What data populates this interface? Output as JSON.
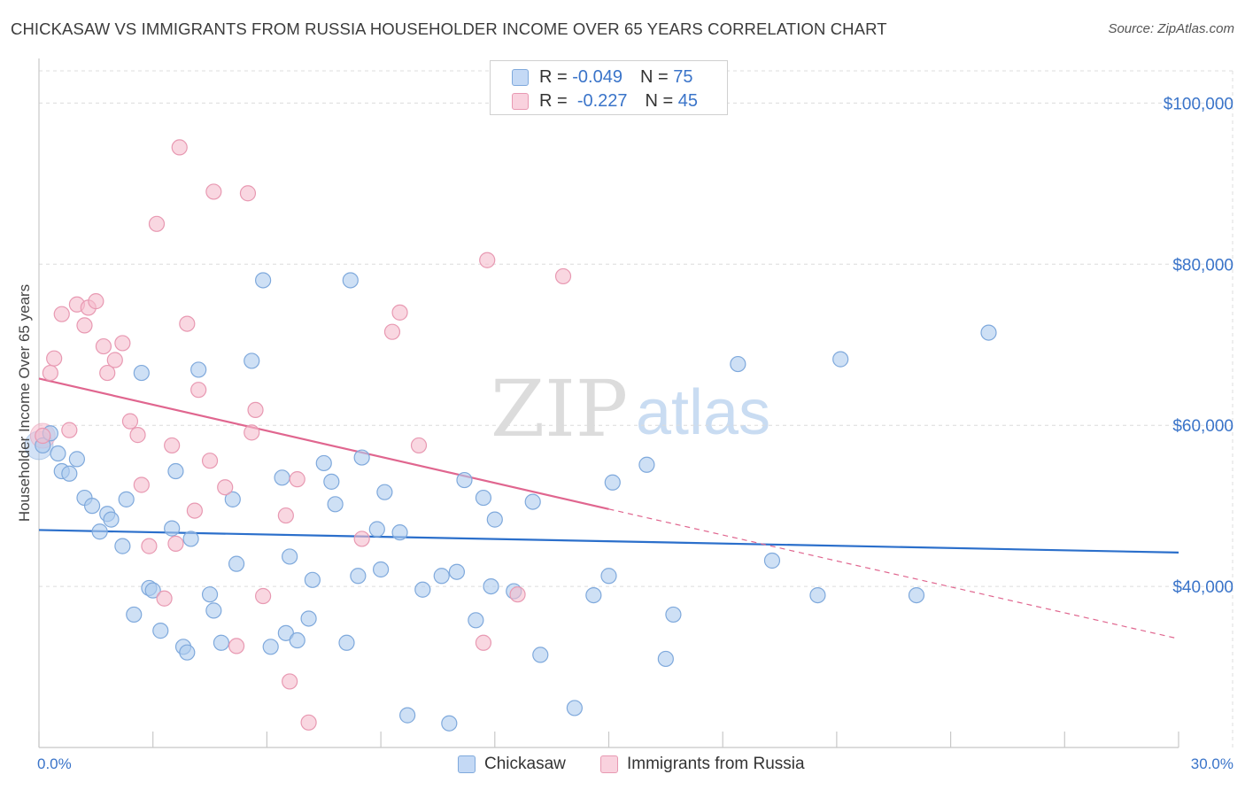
{
  "header": {
    "title": "CHICKASAW VS IMMIGRANTS FROM RUSSIA HOUSEHOLDER INCOME OVER 65 YEARS CORRELATION CHART",
    "source": "Source: ZipAtlas.com"
  },
  "legend": {
    "rows": [
      {
        "r_label": "R =",
        "r_value": "-0.049",
        "n_label": "N =",
        "n_value": "75"
      },
      {
        "r_label": "R =",
        "r_value": "-0.227",
        "n_label": "N =",
        "n_value": "45"
      }
    ]
  },
  "bottom_legend": {
    "series1": "Chickasaw",
    "series2": "Immigrants from Russia"
  },
  "watermark": {
    "zip": "ZIP",
    "atlas": "atlas"
  },
  "colors": {
    "blue_fill": "#aecbef",
    "blue_stroke": "#7fa9dc",
    "blue_line": "#2b6fcb",
    "pink_fill": "#f5bccd",
    "pink_stroke": "#e899b2",
    "pink_line": "#e0668f",
    "grid": "#dcdcdc",
    "label_blue": "#3a74c9"
  },
  "chart_data": {
    "type": "scatter",
    "title": "CHICKASAW VS IMMIGRANTS FROM RUSSIA HOUSEHOLDER INCOME OVER 65 YEARS CORRELATION CHART",
    "xlabel": "",
    "ylabel": "Householder Income Over 65 years",
    "xlim": [
      0,
      30
    ],
    "ylim": [
      20000,
      104000
    ],
    "x_tick_labels": [
      "0.0%",
      "30.0%"
    ],
    "y_ticks": [
      40000,
      60000,
      80000,
      100000
    ],
    "y_tick_labels": [
      "$40,000",
      "$60,000",
      "$80,000",
      "$100,000"
    ],
    "series": [
      {
        "name": "Chickasaw",
        "R": -0.049,
        "N": 75,
        "trend": {
          "x": [
            0,
            30
          ],
          "y": [
            47000,
            44200
          ],
          "dashed_from": null
        },
        "points": [
          [
            0.1,
            57.5
          ],
          [
            0.3,
            59
          ],
          [
            0.5,
            56.5
          ],
          [
            0.6,
            54.3
          ],
          [
            0.8,
            54
          ],
          [
            1.0,
            55.8
          ],
          [
            1.2,
            51
          ],
          [
            1.4,
            50
          ],
          [
            1.6,
            46.8
          ],
          [
            1.8,
            49
          ],
          [
            1.9,
            48.3
          ],
          [
            2.2,
            45
          ],
          [
            2.3,
            50.8
          ],
          [
            2.5,
            36.5
          ],
          [
            2.7,
            66.5
          ],
          [
            2.9,
            39.8
          ],
          [
            3.0,
            39.5
          ],
          [
            3.2,
            34.5
          ],
          [
            3.5,
            47.2
          ],
          [
            3.6,
            54.3
          ],
          [
            3.8,
            32.5
          ],
          [
            3.9,
            31.8
          ],
          [
            4.0,
            45.9
          ],
          [
            4.2,
            66.9
          ],
          [
            4.5,
            39
          ],
          [
            4.6,
            37
          ],
          [
            4.8,
            33
          ],
          [
            5.1,
            50.8
          ],
          [
            5.2,
            42.8
          ],
          [
            5.6,
            68
          ],
          [
            5.9,
            78
          ],
          [
            6.1,
            32.5
          ],
          [
            6.4,
            53.5
          ],
          [
            6.5,
            34.2
          ],
          [
            6.6,
            43.7
          ],
          [
            6.8,
            33.3
          ],
          [
            7.1,
            36
          ],
          [
            7.2,
            40.8
          ],
          [
            7.5,
            55.3
          ],
          [
            7.7,
            53
          ],
          [
            7.8,
            50.2
          ],
          [
            8.1,
            33
          ],
          [
            8.2,
            78
          ],
          [
            8.4,
            41.3
          ],
          [
            8.5,
            56
          ],
          [
            8.9,
            47.1
          ],
          [
            9.0,
            42.1
          ],
          [
            9.1,
            51.7
          ],
          [
            9.5,
            46.7
          ],
          [
            9.7,
            24
          ],
          [
            10.1,
            39.6
          ],
          [
            10.6,
            41.3
          ],
          [
            10.8,
            23
          ],
          [
            11.0,
            41.8
          ],
          [
            11.2,
            53.2
          ],
          [
            11.5,
            35.8
          ],
          [
            11.7,
            51
          ],
          [
            11.9,
            40
          ],
          [
            12.0,
            48.3
          ],
          [
            12.5,
            39.4
          ],
          [
            13.0,
            50.5
          ],
          [
            13.2,
            31.5
          ],
          [
            14.1,
            24.9
          ],
          [
            14.6,
            38.9
          ],
          [
            15.0,
            41.3
          ],
          [
            15.1,
            52.9
          ],
          [
            16.0,
            55.1
          ],
          [
            16.5,
            31
          ],
          [
            16.7,
            36.5
          ],
          [
            18.4,
            67.6
          ],
          [
            19.3,
            43.2
          ],
          [
            20.5,
            38.9
          ],
          [
            21.1,
            68.2
          ],
          [
            23.1,
            38.9
          ],
          [
            25.0,
            71.5
          ]
        ]
      },
      {
        "name": "Immigrants from Russia",
        "R": -0.227,
        "N": 45,
        "trend": {
          "x": [
            0,
            15
          ],
          "y": [
            65800,
            49600
          ],
          "dashed_to": [
            30,
            33500
          ]
        },
        "points": [
          [
            0.1,
            58.7
          ],
          [
            0.3,
            66.5
          ],
          [
            0.4,
            68.3
          ],
          [
            0.6,
            73.8
          ],
          [
            0.8,
            59.4
          ],
          [
            1.0,
            75
          ],
          [
            1.2,
            72.4
          ],
          [
            1.3,
            74.6
          ],
          [
            1.5,
            75.4
          ],
          [
            1.7,
            69.8
          ],
          [
            1.8,
            66.5
          ],
          [
            2.0,
            68.1
          ],
          [
            2.2,
            70.2
          ],
          [
            2.4,
            60.5
          ],
          [
            2.6,
            58.8
          ],
          [
            2.7,
            52.6
          ],
          [
            2.9,
            45
          ],
          [
            3.1,
            85
          ],
          [
            3.3,
            38.5
          ],
          [
            3.5,
            57.5
          ],
          [
            3.6,
            45.3
          ],
          [
            3.7,
            94.5
          ],
          [
            3.9,
            72.6
          ],
          [
            4.1,
            49.4
          ],
          [
            4.2,
            64.4
          ],
          [
            4.5,
            55.6
          ],
          [
            4.6,
            89
          ],
          [
            4.9,
            52.3
          ],
          [
            5.2,
            32.6
          ],
          [
            5.5,
            88.8
          ],
          [
            5.6,
            59.1
          ],
          [
            5.7,
            61.9
          ],
          [
            5.9,
            38.8
          ],
          [
            6.5,
            48.8
          ],
          [
            6.6,
            28.2
          ],
          [
            6.8,
            53.3
          ],
          [
            7.1,
            23.1
          ],
          [
            8.5,
            45.9
          ],
          [
            9.3,
            71.6
          ],
          [
            9.5,
            74
          ],
          [
            10.0,
            57.5
          ],
          [
            11.7,
            33
          ],
          [
            11.8,
            80.5
          ],
          [
            12.6,
            39
          ],
          [
            13.8,
            78.5
          ]
        ]
      }
    ]
  }
}
